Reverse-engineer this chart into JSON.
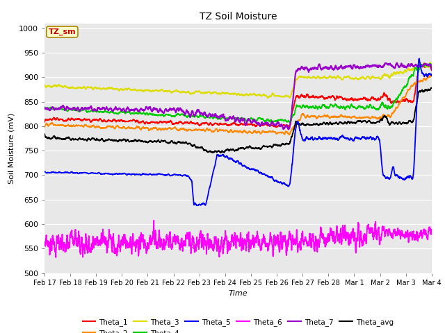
{
  "title": "TZ Soil Moisture",
  "xlabel": "Time",
  "ylabel": "Soil Moisture (mV)",
  "ylim": [
    500,
    1010
  ],
  "yticks": [
    500,
    550,
    600,
    650,
    700,
    750,
    800,
    850,
    900,
    950,
    1000
  ],
  "legend_label": "TZ_sm",
  "series_colors": {
    "Theta_1": "#ff0000",
    "Theta_2": "#ff8800",
    "Theta_3": "#dddd00",
    "Theta_4": "#00cc00",
    "Theta_5": "#0000ff",
    "Theta_6": "#ff00ff",
    "Theta_7": "#9900cc",
    "Theta_avg": "#000000"
  },
  "x_labels": [
    "Feb 17",
    "Feb 18",
    "Feb 19",
    "Feb 20",
    "Feb 21",
    "Feb 22",
    "Feb 23",
    "Feb 24",
    "Feb 25",
    "Feb 26",
    "Feb 27",
    "Feb 28",
    "Mar 1",
    "Mar 2",
    "Mar 3",
    "Mar 4"
  ]
}
